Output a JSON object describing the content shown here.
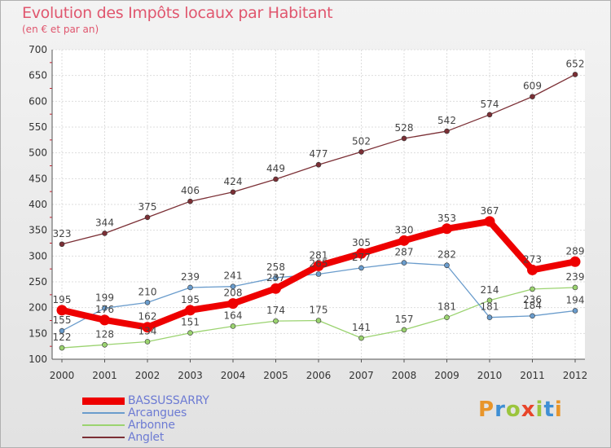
{
  "title": "Evolution des Impôts locaux par Habitant",
  "subtitle": "(en € et par an)",
  "logo": {
    "letters": [
      "P",
      "r",
      "o",
      "x",
      "i",
      "t",
      "i"
    ],
    "colors": [
      "#e8952a",
      "#3f8fd4",
      "#9bc53d",
      "#e8452a",
      "#9bc53d",
      "#3f8fd4",
      "#e8952a"
    ]
  },
  "chart_data": {
    "type": "line",
    "x": [
      "2000",
      "2001",
      "2002",
      "2003",
      "2004",
      "2005",
      "2006",
      "2007",
      "2008",
      "2009",
      "2010",
      "2011",
      "2012"
    ],
    "ylim": [
      100,
      700
    ],
    "yticks": [
      "100",
      "150",
      "200",
      "250",
      "300",
      "350",
      "400",
      "450",
      "500",
      "550",
      "600",
      "650",
      "700"
    ],
    "grid": true,
    "legend_position": "bottom-left",
    "series": [
      {
        "name": "BASSUSSARRY",
        "color": "#ee0000",
        "style": "thick",
        "values": [
          195,
          176,
          162,
          195,
          208,
          237,
          281,
          305,
          330,
          353,
          367,
          273,
          289
        ],
        "labels": [
          "195",
          "176",
          "162",
          "195",
          "208",
          "237",
          "281",
          "305",
          "330",
          "353",
          "367",
          "273",
          "289"
        ],
        "label_pos": [
          "above",
          "above",
          "above",
          "above",
          "above",
          "above",
          "above",
          "above",
          "above",
          "above",
          "above",
          "above",
          "above"
        ]
      },
      {
        "name": "Arcangues",
        "color": "#6a9ccc",
        "style": "thin",
        "values": [
          155,
          199,
          210,
          239,
          241,
          258,
          265,
          277,
          287,
          282,
          181,
          184,
          194
        ],
        "labels": [
          "155",
          "199",
          "210",
          "239",
          "241",
          "258",
          "265",
          "277",
          "287",
          "282",
          "181",
          "184",
          "194"
        ],
        "label_pos": [
          "above",
          "above",
          "above",
          "above",
          "above",
          "above",
          "above",
          "above",
          "above",
          "above",
          "above",
          "above",
          "above"
        ]
      },
      {
        "name": "Arbonne",
        "color": "#9bd370",
        "style": "thin",
        "values": [
          122,
          128,
          134,
          151,
          164,
          174,
          175,
          141,
          157,
          181,
          214,
          236,
          239
        ],
        "labels": [
          "122",
          "128",
          "134",
          "151",
          "164",
          "174",
          "175",
          "141",
          "157",
          "181",
          "214",
          "236",
          "239"
        ],
        "label_pos": [
          "above",
          "above",
          "above",
          "above",
          "above",
          "above",
          "above",
          "above",
          "above",
          "above",
          "above",
          "below",
          "above"
        ]
      },
      {
        "name": "Anglet",
        "color": "#7b2f35",
        "style": "thin",
        "values": [
          323,
          344,
          375,
          406,
          424,
          449,
          477,
          502,
          528,
          542,
          574,
          609,
          652
        ],
        "labels": [
          "323",
          "344",
          "375",
          "406",
          "424",
          "449",
          "477",
          "502",
          "528",
          "542",
          "574",
          "609",
          "652"
        ],
        "label_pos": [
          "above",
          "above",
          "above",
          "above",
          "above",
          "above",
          "above",
          "above",
          "above",
          "above",
          "above",
          "above",
          "above"
        ]
      }
    ]
  }
}
